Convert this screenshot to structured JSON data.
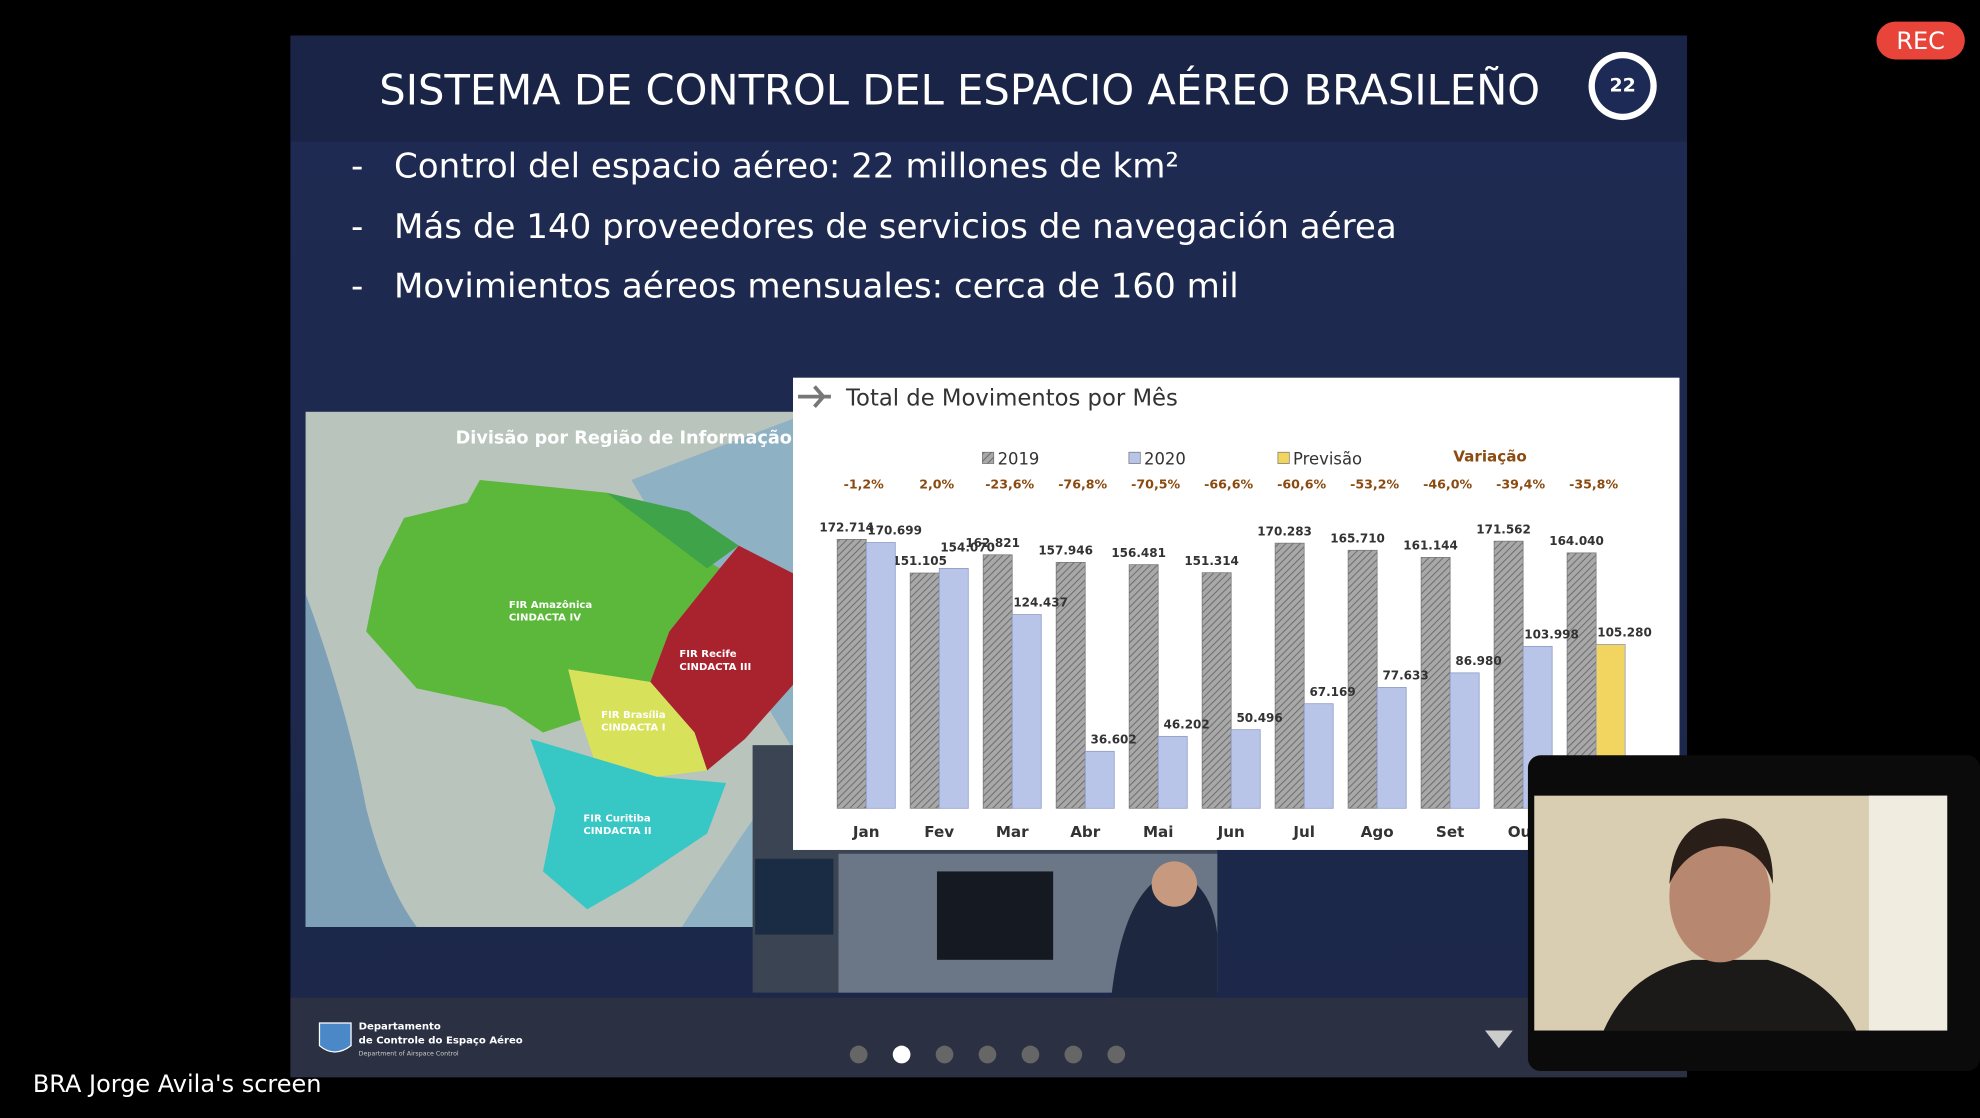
{
  "recording": "REC",
  "screen_owner": "BRA Jorge Avila's screen",
  "slide": {
    "title": "SISTEMA DE CONTROL DEL ESPACIO AÉREO BRASILEÑO",
    "logo_number": "22",
    "bullets": [
      "Control del espacio aéreo: 22 millones de km²",
      "Más de 140 proveedores de servicios de navegación aérea",
      "Movimientos aéreos mensuales: cerca de 160 mil"
    ],
    "map": {
      "title": "Divisão por Região de Informação",
      "regions": [
        {
          "name": "FIR Amazônica",
          "unit": "CINDACTA IV"
        },
        {
          "name": "FIR Recife",
          "unit": "CINDACTA III"
        },
        {
          "name": "FIR Brasília",
          "unit": "CINDACTA I"
        },
        {
          "name": "FIR Curitiba",
          "unit": "CINDACTA II"
        }
      ]
    },
    "chart": {
      "type": "bar",
      "title": "Total de Movimentos por Mês",
      "categories": [
        "Jan",
        "Fev",
        "Mar",
        "Abr",
        "Mai",
        "Jun",
        "Jul",
        "Ago",
        "Set",
        "Out",
        null
      ],
      "series": [
        {
          "name": "2019",
          "color": "#9c9c9c",
          "values": [
            172714,
            151105,
            162821,
            157946,
            156481,
            151314,
            170283,
            165710,
            161144,
            171562,
            164040
          ],
          "value_labels": [
            "172.714",
            "151.105",
            "162.821",
            "157.946",
            "156.481",
            "151.314",
            "170.283",
            "165.710",
            "161.144",
            "171.562",
            "164.040"
          ]
        },
        {
          "name": "2020",
          "color": "#b8c5e8",
          "values": [
            170699,
            154070,
            124437,
            36602,
            46202,
            50496,
            67169,
            77633,
            86980,
            103998,
            null
          ],
          "value_labels": [
            "170.699",
            "154.070",
            "124.437",
            "36.602",
            "46.202",
            "50.496",
            "67.169",
            "77.633",
            "86.980",
            "103.998",
            null
          ]
        },
        {
          "name": "Previsão",
          "color": "#f2d460",
          "values": [
            null,
            null,
            null,
            null,
            null,
            null,
            null,
            null,
            null,
            null,
            105280
          ],
          "value_labels": [
            null,
            null,
            null,
            null,
            null,
            null,
            null,
            null,
            null,
            null,
            "105.280"
          ]
        }
      ],
      "variation": {
        "name": "Variação",
        "color": "#8a4a10",
        "values": [
          -1.2,
          2.0,
          -23.6,
          -76.8,
          -70.5,
          -66.6,
          -60.6,
          -53.2,
          -46.0,
          -39.4,
          -35.8
        ],
        "value_labels": [
          "-1,2%",
          "2,0%",
          "-23,6%",
          "-76,8%",
          "-70,5%",
          "-66,6%",
          "-60,6%",
          "-53,2%",
          "-46,0%",
          "-39,4%",
          "-35,8%"
        ]
      }
    },
    "footer": {
      "org_line1": "Departamento",
      "org_line2": "de Controle do Espaço Aéreo",
      "org_line3": "Department of Airspace Control"
    },
    "pages": 7,
    "current_page": 2
  }
}
